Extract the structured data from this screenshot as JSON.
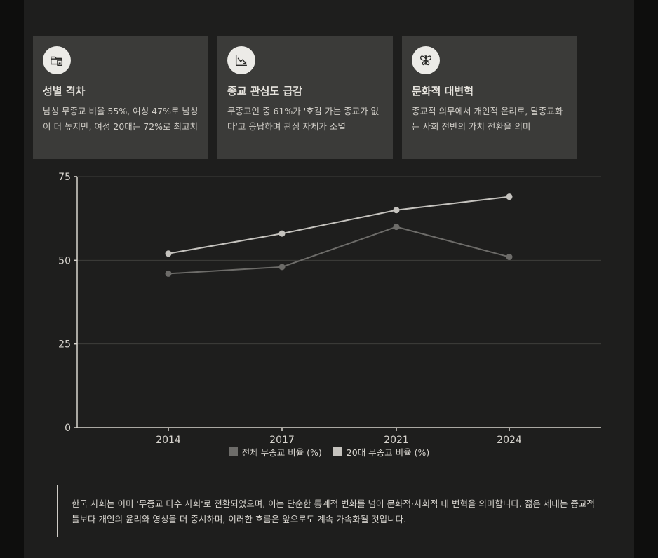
{
  "cards": [
    {
      "icon": "folder-document-icon",
      "title": "성별 격차",
      "desc": "남성 무종교 비율 55%, 여성 47%로 남성이 더 높지만, 여성 20대는 72%로 최고치"
    },
    {
      "icon": "chart-decline-icon",
      "title": "종교 관심도 급감",
      "desc": "무종교인 중 61%가 '호감 가는 종교가 없다'고 응답하며 관심 자체가 소멸"
    },
    {
      "icon": "butterfly-icon",
      "title": "문화적 대변혁",
      "desc": "종교적 의무에서 개인적 윤리로, 탈종교화는 사회 전반의 가치 전환을 의미"
    }
  ],
  "chart_data": {
    "type": "line",
    "categories": [
      "2014",
      "2017",
      "2021",
      "2024"
    ],
    "series": [
      {
        "name": "전체 무종교 비율 (%)",
        "values": [
          46,
          48,
          60,
          51
        ],
        "color": "#6d6c69"
      },
      {
        "name": "20대 무종교 비율 (%)",
        "values": [
          52,
          58,
          65,
          69
        ],
        "color": "#c5c3be"
      }
    ],
    "yticks": [
      "0",
      "25",
      "50",
      "75"
    ],
    "ylim": [
      0,
      75
    ],
    "grid": true,
    "legend": "bottom"
  },
  "summary": "한국 사회는 이미 '무종교 다수 사회'로 전환되었으며, 이는 단순한 통계적 변화를 넘어 문화적·사회적 대 변혁을 의미합니다. 젊은 세대는 종교적 틀보다 개인의 윤리와 영성을 더 중시하며, 이러한 흐름은 앞으로도 계속 가속화될 것입니다."
}
